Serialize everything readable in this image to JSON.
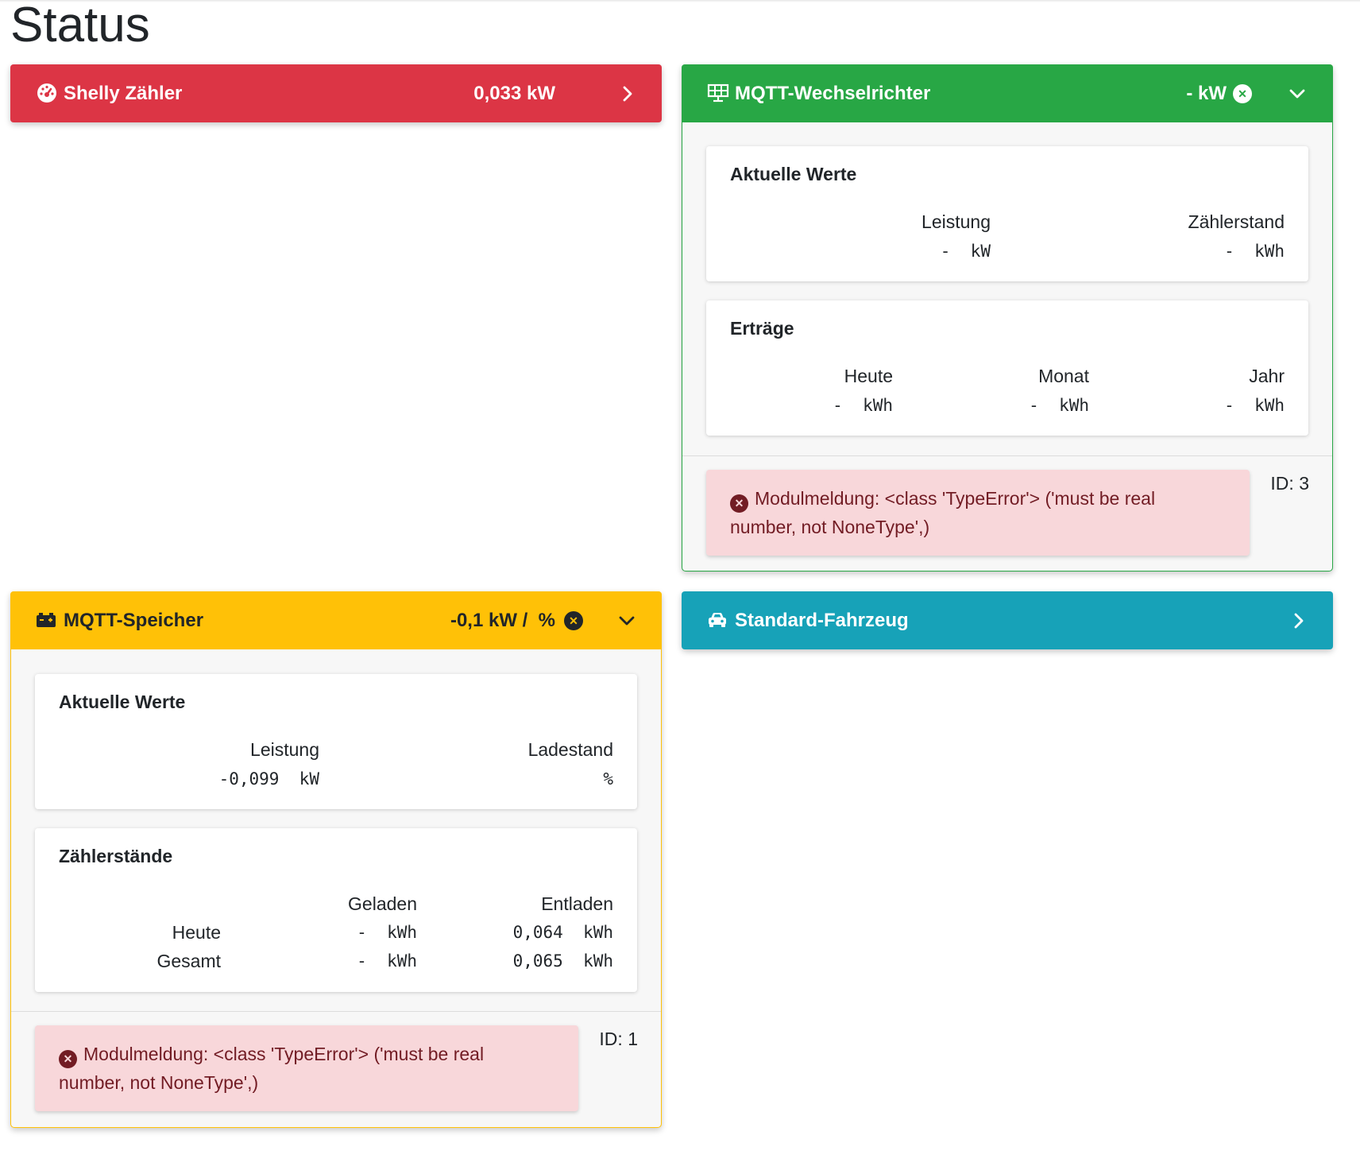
{
  "page": {
    "title": "Status"
  },
  "shelly": {
    "title": "Shelly Zähler",
    "value": "0,033 kW",
    "color": "#dc3545"
  },
  "inverter": {
    "title": "MQTT-Wechselrichter",
    "value": "- kW",
    "color": "#28a745",
    "current": {
      "title": "Aktuelle Werte",
      "power_label": "Leistung",
      "power_value": "-  kW",
      "counter_label": "Zählerstand",
      "counter_value": "-  kWh"
    },
    "yields": {
      "title": "Erträge",
      "today_label": "Heute",
      "today_value": "-  kWh",
      "month_label": "Monat",
      "month_value": "-  kWh",
      "year_label": "Jahr",
      "year_value": "-  kWh"
    },
    "alert": "Modulmeldung: <class 'TypeError'> ('must be real number, not NoneType',)",
    "id": "ID: 3"
  },
  "storage": {
    "title": "MQTT-Speicher",
    "value": "-0,1 kW /  %",
    "color": "#ffc107",
    "current": {
      "title": "Aktuelle Werte",
      "power_label": "Leistung",
      "power_value": "-0,099  kW",
      "soc_label": "Ladestand",
      "soc_value": "%"
    },
    "counters": {
      "title": "Zählerstände",
      "col_charged": "Geladen",
      "col_discharged": "Entladen",
      "rows": [
        {
          "label": "Heute",
          "charged": "-  kWh",
          "discharged": "0,064  kWh"
        },
        {
          "label": "Gesamt",
          "charged": "-  kWh",
          "discharged": "0,065  kWh"
        }
      ]
    },
    "alert": "Modulmeldung: <class 'TypeError'> ('must be real number, not NoneType',)",
    "id": "ID: 1"
  },
  "vehicle": {
    "title": "Standard-Fahrzeug",
    "color": "#17a2b8"
  },
  "icons": {
    "shelly": "tachometer-icon",
    "inverter": "solar-panel-icon",
    "storage": "car-battery-icon",
    "vehicle": "car-icon",
    "expand": "chevron-right-icon",
    "collapse": "chevron-down-icon",
    "error": "times-circle-icon"
  }
}
